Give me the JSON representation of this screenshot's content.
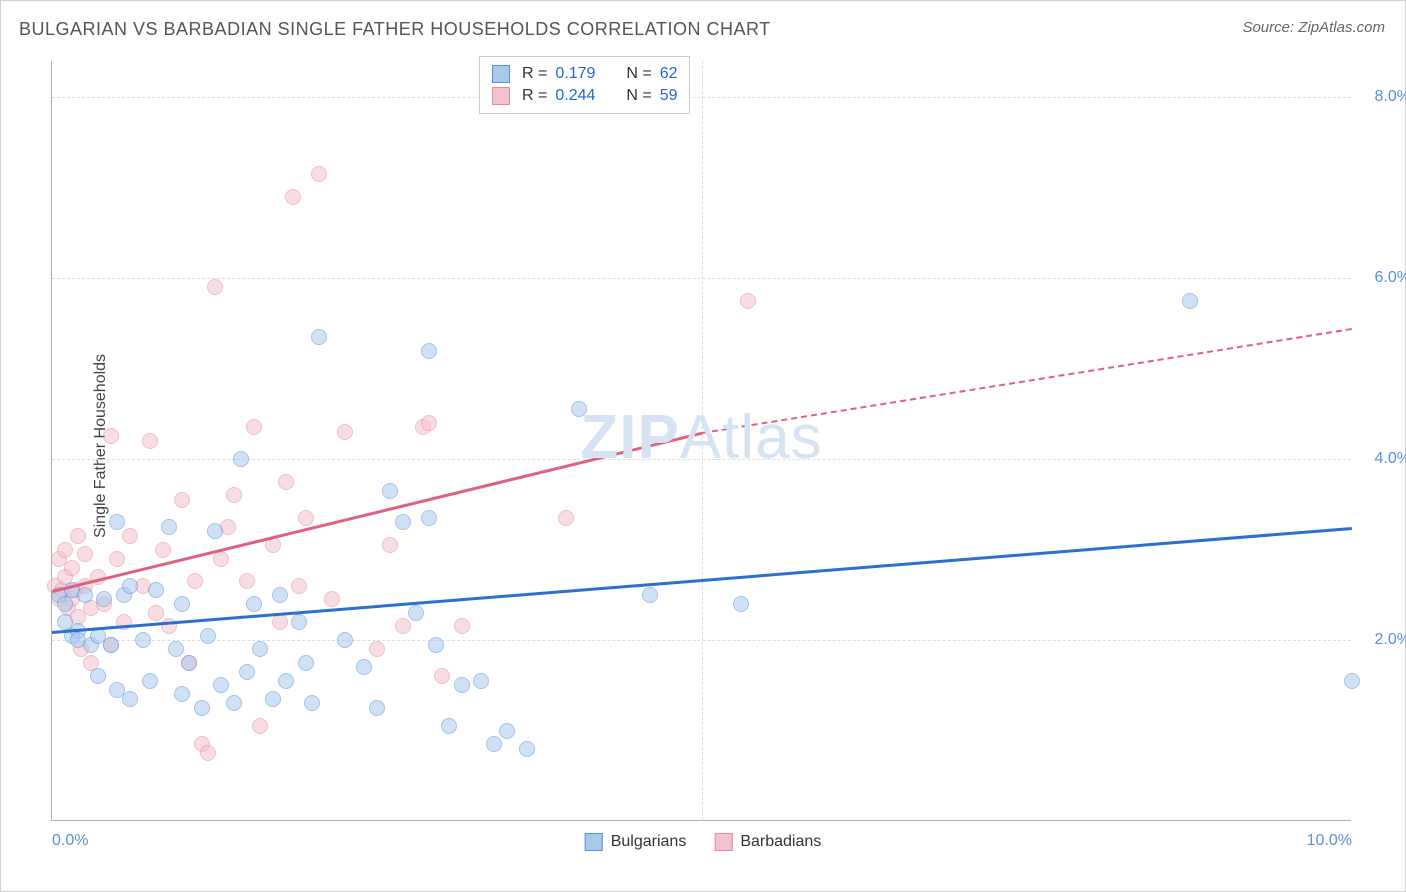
{
  "title": "BULGARIAN VS BARBADIAN SINGLE FATHER HOUSEHOLDS CORRELATION CHART",
  "source": "Source: ZipAtlas.com",
  "ylabel": "Single Father Households",
  "watermark_bold": "ZIP",
  "watermark_rest": "Atlas",
  "chart": {
    "type": "scatter",
    "xlim": [
      0,
      10
    ],
    "ylim": [
      0,
      8.4
    ],
    "xtick_labels": {
      "min": "0.0%",
      "max": "10.0%"
    },
    "ytick_values": [
      2,
      4,
      6,
      8
    ],
    "ytick_labels": [
      "2.0%",
      "4.0%",
      "6.0%",
      "8.0%"
    ],
    "vgrid_at": 5,
    "background_color": "#ffffff",
    "grid_color": "#dddddd",
    "axis_color": "#b0b0b0",
    "tick_label_color": "#5b8fd6",
    "point_radius": 8,
    "point_opacity": 0.55,
    "trendline_width": 2.5
  },
  "series": [
    {
      "name": "Bulgarians",
      "color_fill": "#a9c9ec",
      "color_stroke": "#5b8fd6",
      "trendline_color": "#2b6fd1",
      "trend_start": [
        0,
        2.1
      ],
      "trend_end_solid": [
        10,
        3.25
      ],
      "trend_end_dashed": null,
      "R": "0.179",
      "N": "62",
      "points": [
        [
          0.05,
          2.5
        ],
        [
          0.1,
          2.4
        ],
        [
          0.1,
          2.2
        ],
        [
          0.15,
          2.05
        ],
        [
          0.15,
          2.55
        ],
        [
          0.2,
          2.1
        ],
        [
          0.2,
          2.0
        ],
        [
          0.25,
          2.5
        ],
        [
          0.3,
          1.95
        ],
        [
          0.35,
          2.05
        ],
        [
          0.35,
          1.6
        ],
        [
          0.4,
          2.45
        ],
        [
          0.45,
          1.95
        ],
        [
          0.5,
          3.3
        ],
        [
          0.5,
          1.45
        ],
        [
          0.55,
          2.5
        ],
        [
          0.6,
          1.35
        ],
        [
          0.6,
          2.6
        ],
        [
          0.7,
          2.0
        ],
        [
          0.75,
          1.55
        ],
        [
          0.8,
          2.55
        ],
        [
          0.9,
          3.25
        ],
        [
          0.95,
          1.9
        ],
        [
          1.0,
          2.4
        ],
        [
          1.0,
          1.4
        ],
        [
          1.05,
          1.75
        ],
        [
          1.15,
          1.25
        ],
        [
          1.2,
          2.05
        ],
        [
          1.25,
          3.2
        ],
        [
          1.3,
          1.5
        ],
        [
          1.4,
          1.3
        ],
        [
          1.45,
          4.0
        ],
        [
          1.5,
          1.65
        ],
        [
          1.55,
          2.4
        ],
        [
          1.6,
          1.9
        ],
        [
          1.7,
          1.35
        ],
        [
          1.75,
          2.5
        ],
        [
          1.8,
          1.55
        ],
        [
          1.9,
          2.2
        ],
        [
          1.95,
          1.75
        ],
        [
          2.0,
          1.3
        ],
        [
          2.05,
          5.35
        ],
        [
          2.25,
          2.0
        ],
        [
          2.4,
          1.7
        ],
        [
          2.5,
          1.25
        ],
        [
          2.6,
          3.65
        ],
        [
          2.7,
          3.3
        ],
        [
          2.8,
          2.3
        ],
        [
          2.9,
          5.2
        ],
        [
          2.9,
          3.35
        ],
        [
          2.95,
          1.95
        ],
        [
          3.05,
          1.05
        ],
        [
          3.15,
          1.5
        ],
        [
          3.3,
          1.55
        ],
        [
          3.4,
          0.85
        ],
        [
          3.5,
          1.0
        ],
        [
          3.65,
          0.8
        ],
        [
          4.05,
          4.55
        ],
        [
          4.6,
          2.5
        ],
        [
          5.3,
          2.4
        ],
        [
          8.75,
          5.75
        ],
        [
          10.0,
          1.55
        ]
      ]
    },
    {
      "name": "Barbadians",
      "color_fill": "#f4c2cd",
      "color_stroke": "#e68aa0",
      "trendline_color": "#e0607f",
      "trend_start": [
        0,
        2.55
      ],
      "trend_end_solid": [
        5,
        4.3
      ],
      "trend_end_dashed": [
        10,
        5.45
      ],
      "R": "0.244",
      "N": "59",
      "points": [
        [
          0.02,
          2.6
        ],
        [
          0.05,
          2.9
        ],
        [
          0.05,
          2.45
        ],
        [
          0.08,
          2.55
        ],
        [
          0.1,
          3.0
        ],
        [
          0.1,
          2.7
        ],
        [
          0.12,
          2.35
        ],
        [
          0.15,
          2.45
        ],
        [
          0.15,
          2.8
        ],
        [
          0.18,
          2.55
        ],
        [
          0.2,
          3.15
        ],
        [
          0.2,
          2.25
        ],
        [
          0.22,
          1.9
        ],
        [
          0.25,
          2.6
        ],
        [
          0.25,
          2.95
        ],
        [
          0.3,
          2.35
        ],
        [
          0.3,
          1.75
        ],
        [
          0.35,
          2.7
        ],
        [
          0.4,
          2.4
        ],
        [
          0.45,
          4.25
        ],
        [
          0.45,
          1.95
        ],
        [
          0.5,
          2.9
        ],
        [
          0.55,
          2.2
        ],
        [
          0.6,
          3.15
        ],
        [
          0.7,
          2.6
        ],
        [
          0.75,
          4.2
        ],
        [
          0.8,
          2.3
        ],
        [
          0.85,
          3.0
        ],
        [
          0.9,
          2.15
        ],
        [
          1.0,
          3.55
        ],
        [
          1.05,
          1.75
        ],
        [
          1.1,
          2.65
        ],
        [
          1.15,
          0.85
        ],
        [
          1.2,
          0.75
        ],
        [
          1.25,
          5.9
        ],
        [
          1.3,
          2.9
        ],
        [
          1.35,
          3.25
        ],
        [
          1.4,
          3.6
        ],
        [
          1.5,
          2.65
        ],
        [
          1.55,
          4.35
        ],
        [
          1.6,
          1.05
        ],
        [
          1.7,
          3.05
        ],
        [
          1.75,
          2.2
        ],
        [
          1.8,
          3.75
        ],
        [
          1.85,
          6.9
        ],
        [
          1.9,
          2.6
        ],
        [
          1.95,
          3.35
        ],
        [
          2.05,
          7.15
        ],
        [
          2.15,
          2.45
        ],
        [
          2.25,
          4.3
        ],
        [
          2.5,
          1.9
        ],
        [
          2.6,
          3.05
        ],
        [
          2.7,
          2.15
        ],
        [
          2.85,
          4.35
        ],
        [
          2.9,
          4.4
        ],
        [
          3.0,
          1.6
        ],
        [
          3.15,
          2.15
        ],
        [
          3.95,
          3.35
        ],
        [
          5.35,
          5.75
        ]
      ]
    }
  ],
  "legend_bottom": [
    {
      "label": "Bulgarians",
      "fill": "#a9c9ec",
      "stroke": "#5b8fd6"
    },
    {
      "label": "Barbadians",
      "fill": "#f4c2cd",
      "stroke": "#e68aa0"
    }
  ]
}
